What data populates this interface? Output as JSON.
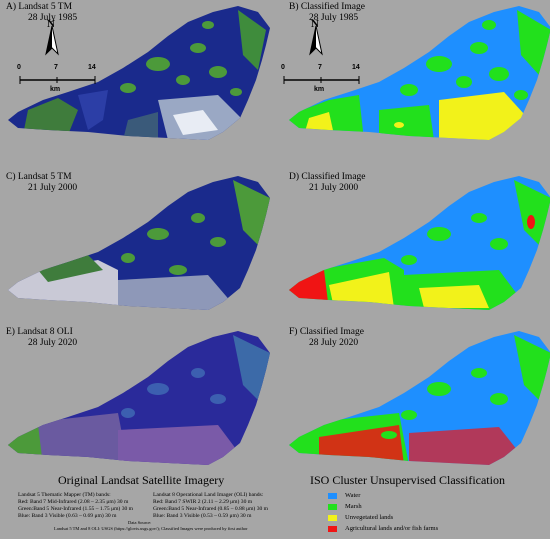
{
  "panels": {
    "a": {
      "title1": "A) Landsat 5 TM",
      "title2": "28 July 1985"
    },
    "b": {
      "title1": "B) Classified Image",
      "title2": "28 July 1985"
    },
    "c": {
      "title1": "C) Landsat 5 TM",
      "title2": "21 July 2000"
    },
    "d": {
      "title1": "D) Classified Image",
      "title2": "21 July 2000"
    },
    "e": {
      "title1": "E) Landsat 8 OLI",
      "title2": "28 July 2020"
    },
    "f": {
      "title1": "F) Classified Image",
      "title2": "28 July 2020"
    }
  },
  "north_arrow": {
    "label": "N"
  },
  "scale_bar": {
    "ticks": [
      "0",
      "7",
      "14"
    ],
    "unit": "km"
  },
  "bottom_left_title": "Original Landsat Satellite Imagery",
  "bottom_right_title": "ISO Cluster Unsupervised Classification",
  "bands": {
    "l5_title": "Landsat 5 Thematic Mapper (TM) bands:",
    "l5_red": "Red:   Band 7 Mid-Infrared  (2.08 – 2.35 μm) 30 m",
    "l5_green": "Green:Band 5 Near-Infrared (1.55 – 1.75 μm) 30 m",
    "l5_blue": "Blue:  Band 3 Visible          (0.63 – 0.69 μm) 30 m",
    "l8_title": "Landsat 8 Operational Land Imager (OLI)  bands:",
    "l8_red": "Red:   Band 7 SWIR 2          (2.11 – 2.29 μm) 30 m",
    "l8_green": "Green:Band 5 Near-Infrared (0.85 – 0.88 μm) 30 m",
    "l8_blue": "Blue:  Band 3 Visible          (0.53 – 0.59 μm) 30 m",
    "source_title": "Data Source:",
    "source_text": "Landsat 5 TM and 8 OLI: USGS (https://glovis.usgs.gov/); Classified Images were produced by first author"
  },
  "legend": [
    {
      "label": "Water",
      "color": "#1e8fff"
    },
    {
      "label": "Marsh",
      "color": "#22e01c"
    },
    {
      "label": "Unvegetated lands",
      "color": "#f2f21a"
    },
    {
      "label": "Agricultural lands and/or fish farms",
      "color": "#f01414"
    }
  ],
  "colors": {
    "background": "#a6a6a6",
    "satellite_water": "#1a2a8c",
    "satellite_marsh": "#4c9a3a",
    "satellite_urban": "#c9c9d6",
    "class_water": "#1e8fff",
    "class_marsh": "#22e01c",
    "class_unveg": "#f2f21a",
    "class_agri": "#f01414"
  }
}
